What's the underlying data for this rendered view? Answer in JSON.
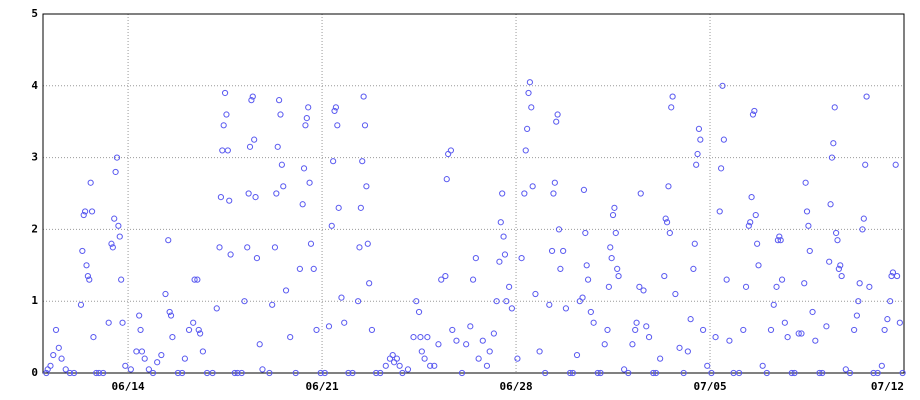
{
  "chart_data": {
    "type": "scatter",
    "color": "#5a5af0",
    "grid": true,
    "xlim": [
      161.93,
      193
    ],
    "ylim": [
      0,
      5
    ],
    "xticks": [
      {
        "value": 165,
        "label": "06/14"
      },
      {
        "value": 172,
        "label": "06/21"
      },
      {
        "value": 179,
        "label": "06/28"
      },
      {
        "value": 186,
        "label": "07/05"
      },
      {
        "value": 193,
        "label": "07/12"
      }
    ],
    "yticks": [
      0,
      1,
      2,
      3,
      4,
      5
    ],
    "x": [
      162.05,
      162.1,
      162.2,
      162.3,
      162.4,
      162.5,
      162.6,
      162.75,
      162.9,
      163.05,
      163.3,
      163.35,
      163.4,
      163.45,
      163.5,
      163.55,
      163.6,
      163.65,
      163.7,
      163.75,
      163.85,
      163.95,
      164.1,
      164.3,
      164.4,
      164.45,
      164.5,
      164.55,
      164.6,
      164.65,
      164.7,
      164.75,
      164.8,
      164.9,
      165.1,
      165.3,
      165.4,
      165.45,
      165.5,
      165.6,
      165.75,
      165.9,
      166.05,
      166.2,
      166.35,
      166.45,
      166.5,
      166.55,
      166.6,
      166.8,
      166.95,
      167.05,
      167.2,
      167.35,
      167.4,
      167.5,
      167.55,
      167.6,
      167.7,
      167.85,
      168.05,
      168.2,
      168.3,
      168.35,
      168.4,
      168.45,
      168.5,
      168.55,
      168.6,
      168.65,
      168.7,
      168.85,
      168.95,
      169.1,
      169.2,
      169.3,
      169.35,
      169.4,
      169.45,
      169.5,
      169.55,
      169.6,
      169.65,
      169.75,
      169.85,
      170.1,
      170.2,
      170.3,
      170.35,
      170.4,
      170.45,
      170.5,
      170.55,
      170.6,
      170.7,
      170.85,
      171.05,
      171.2,
      171.3,
      171.35,
      171.4,
      171.45,
      171.5,
      171.55,
      171.6,
      171.7,
      171.8,
      171.95,
      172.1,
      172.25,
      172.35,
      172.4,
      172.45,
      172.5,
      172.55,
      172.6,
      172.7,
      172.8,
      172.95,
      173.1,
      173.3,
      173.35,
      173.4,
      173.45,
      173.5,
      173.55,
      173.6,
      173.65,
      173.7,
      173.8,
      173.95,
      174.1,
      174.3,
      174.45,
      174.55,
      174.6,
      174.7,
      174.8,
      174.9,
      175.1,
      175.3,
      175.4,
      175.5,
      175.55,
      175.6,
      175.7,
      175.8,
      175.9,
      176.05,
      176.2,
      176.3,
      176.45,
      176.5,
      176.55,
      176.65,
      176.7,
      176.85,
      177.05,
      177.2,
      177.35,
      177.45,
      177.55,
      177.65,
      177.8,
      177.95,
      178.05,
      178.2,
      178.3,
      178.4,
      178.45,
      178.5,
      178.55,
      178.6,
      178.65,
      178.75,
      178.85,
      179.05,
      179.2,
      179.3,
      179.35,
      179.4,
      179.45,
      179.5,
      179.55,
      179.6,
      179.7,
      179.85,
      180.05,
      180.2,
      180.3,
      180.35,
      180.4,
      180.45,
      180.5,
      180.55,
      180.6,
      180.7,
      180.8,
      180.95,
      181.05,
      181.2,
      181.3,
      181.4,
      181.45,
      181.5,
      181.55,
      181.6,
      181.7,
      181.8,
      181.95,
      182.05,
      182.2,
      182.3,
      182.35,
      182.4,
      182.45,
      182.5,
      182.55,
      182.6,
      182.65,
      182.7,
      182.9,
      183.05,
      183.2,
      183.3,
      183.35,
      183.45,
      183.5,
      183.6,
      183.7,
      183.8,
      183.95,
      184.05,
      184.2,
      184.35,
      184.4,
      184.45,
      184.5,
      184.55,
      184.6,
      184.65,
      184.75,
      184.9,
      185.05,
      185.2,
      185.3,
      185.4,
      185.45,
      185.5,
      185.55,
      185.6,
      185.65,
      185.75,
      185.9,
      186.05,
      186.2,
      186.35,
      186.4,
      186.45,
      186.5,
      186.6,
      186.7,
      186.85,
      187.05,
      187.2,
      187.3,
      187.4,
      187.45,
      187.5,
      187.55,
      187.6,
      187.65,
      187.7,
      187.75,
      187.9,
      188.05,
      188.2,
      188.3,
      188.4,
      188.45,
      188.5,
      188.55,
      188.6,
      188.7,
      188.8,
      188.95,
      189.05,
      189.2,
      189.3,
      189.4,
      189.45,
      189.5,
      189.55,
      189.6,
      189.7,
      189.8,
      189.95,
      190.05,
      190.2,
      190.3,
      190.35,
      190.4,
      190.45,
      190.5,
      190.55,
      190.6,
      190.65,
      190.7,
      190.75,
      190.9,
      191.05,
      191.2,
      191.3,
      191.35,
      191.4,
      191.5,
      191.55,
      191.6,
      191.65,
      191.75,
      191.9,
      192.05,
      192.2,
      192.3,
      192.4,
      192.5,
      192.55,
      192.6,
      192.7,
      192.75,
      192.85,
      192.95
    ],
    "values": [
      0,
      0.05,
      0.1,
      0.25,
      0.6,
      0.35,
      0.2,
      0.05,
      0,
      0,
      0.95,
      1.7,
      2.2,
      2.25,
      1.5,
      1.35,
      1.3,
      2.65,
      2.25,
      0.5,
      0,
      0,
      0,
      0.7,
      1.8,
      1.75,
      2.15,
      2.8,
      3.0,
      2.05,
      1.9,
      1.3,
      0.7,
      0.1,
      0.05,
      0.3,
      0.8,
      0.6,
      0.3,
      0.2,
      0.05,
      0,
      0.15,
      0.25,
      1.1,
      1.85,
      0.85,
      0.8,
      0.5,
      0,
      0,
      0.2,
      0.6,
      0.7,
      1.3,
      1.3,
      0.6,
      0.55,
      0.3,
      0,
      0,
      0.9,
      1.75,
      2.45,
      3.1,
      3.45,
      3.9,
      3.6,
      3.1,
      2.4,
      1.65,
      0,
      0,
      0,
      1.0,
      1.75,
      2.5,
      3.15,
      3.8,
      3.85,
      3.25,
      2.45,
      1.6,
      0.4,
      0.05,
      0,
      0.95,
      1.75,
      2.5,
      3.15,
      3.8,
      3.6,
      2.9,
      2.6,
      1.15,
      0.5,
      0,
      1.45,
      2.35,
      2.85,
      3.45,
      3.55,
      3.7,
      2.65,
      1.8,
      1.45,
      0.6,
      0,
      0,
      0.65,
      2.05,
      2.95,
      3.65,
      3.7,
      3.45,
      2.3,
      1.05,
      0.7,
      0,
      0,
      1.0,
      1.75,
      2.3,
      2.95,
      3.85,
      3.45,
      2.6,
      1.8,
      1.25,
      0.6,
      0,
      0,
      0.1,
      0.2,
      0.25,
      0.15,
      0.2,
      0.1,
      0,
      0.05,
      0.5,
      1.0,
      0.85,
      0.5,
      0.3,
      0.2,
      0.5,
      0.1,
      0.1,
      0.4,
      1.3,
      1.35,
      2.7,
      3.05,
      3.1,
      0.6,
      0.45,
      0,
      0.4,
      0.65,
      1.3,
      1.6,
      0.2,
      0.45,
      0.1,
      0.3,
      0.55,
      1.0,
      1.55,
      2.1,
      2.5,
      1.9,
      1.65,
      1.0,
      1.2,
      0.9,
      0.2,
      1.6,
      2.5,
      3.1,
      3.4,
      3.9,
      4.05,
      3.7,
      2.6,
      1.1,
      0.3,
      0,
      0.95,
      1.7,
      2.5,
      2.65,
      3.5,
      3.6,
      2.0,
      1.45,
      1.7,
      0.9,
      0,
      0,
      0.25,
      1.0,
      1.05,
      2.55,
      1.95,
      1.5,
      1.3,
      0.85,
      0.7,
      0,
      0,
      0.4,
      0.6,
      1.2,
      1.75,
      1.6,
      2.2,
      2.3,
      1.95,
      1.45,
      1.35,
      0.05,
      0,
      0.4,
      0.6,
      0.7,
      1.2,
      2.5,
      1.15,
      0.65,
      0.5,
      0,
      0,
      0.2,
      1.35,
      2.15,
      2.1,
      2.6,
      1.95,
      3.7,
      3.85,
      1.1,
      0.35,
      0,
      0.3,
      0.75,
      1.45,
      1.8,
      2.9,
      3.05,
      3.4,
      3.25,
      0.6,
      0.1,
      0,
      0.5,
      2.25,
      2.85,
      4.0,
      3.25,
      1.3,
      0.45,
      0,
      0,
      0.6,
      1.2,
      2.05,
      2.1,
      2.45,
      3.6,
      3.65,
      2.2,
      1.8,
      1.5,
      0.1,
      0,
      0.6,
      0.95,
      1.2,
      1.85,
      1.9,
      1.85,
      1.3,
      0.7,
      0.5,
      0,
      0,
      0.55,
      0.55,
      1.25,
      2.65,
      2.25,
      2.05,
      1.7,
      0.85,
      0.45,
      0,
      0,
      0.65,
      1.55,
      2.35,
      3.0,
      3.2,
      3.7,
      1.95,
      1.85,
      1.45,
      1.5,
      1.35,
      0.05,
      0,
      0.6,
      0.8,
      1.0,
      1.25,
      2.0,
      2.15,
      2.9,
      3.85,
      1.2,
      0,
      0,
      0.1,
      0.6,
      0.75,
      1.0,
      1.35,
      1.4,
      2.9,
      1.35,
      0.7,
      0
    ]
  }
}
